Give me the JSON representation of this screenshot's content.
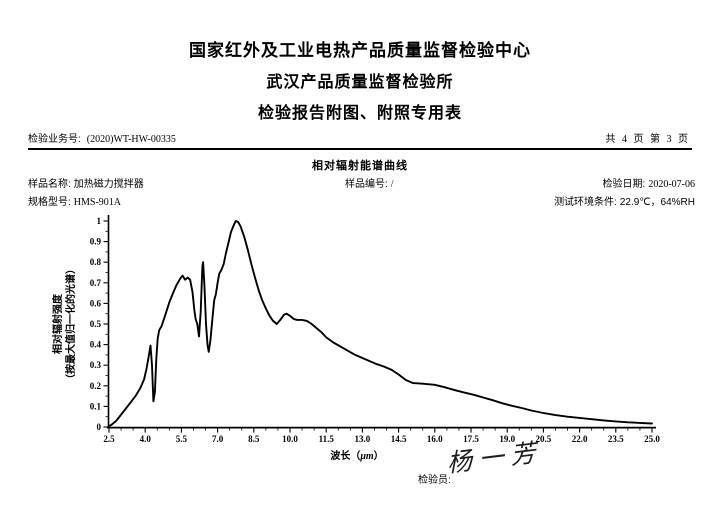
{
  "header": {
    "line1": "国家红外及工业电热产品质量监督检验中心",
    "line2": "武汉产品质量监督检验所",
    "line3": "检验报告附图、附照专用表"
  },
  "meta": {
    "business_label": "检验业务号:",
    "business_no": "(2020)WT-HW-00335",
    "pagination": "共 4 页 第 3 页"
  },
  "section": {
    "title": "相对辐射能谱曲线"
  },
  "info": {
    "sample_name_label": "样品名称:",
    "sample_name": "加热磁力搅拌器",
    "sample_no_label": "样品编号:",
    "sample_no": "/",
    "date_label": "检验日期:",
    "date": "2020-07-06",
    "model_label": "规格型号:",
    "model": "HMS-901A",
    "env_label": "测试环境条件:",
    "env": "22.9℃，64%RH"
  },
  "footer": {
    "inspector_label": "检验员:",
    "signature": "杨一芳"
  },
  "chart_data": {
    "type": "line",
    "title": "相对辐射能谱曲线",
    "xlabel_prefix": "波长（",
    "xlabel_unit": "μm",
    "xlabel_suffix": "）",
    "ylabel_lines": [
      "相对辐射强度",
      "（按最大值归一化的光谱）"
    ],
    "xlim": [
      2.5,
      25.0
    ],
    "ylim": [
      0,
      1
    ],
    "grid": false,
    "legend": null,
    "line_color": "#000000",
    "x_tick_values": [
      2.5,
      4.0,
      5.5,
      7.0,
      8.5,
      10.0,
      11.5,
      13.0,
      14.5,
      16.0,
      17.5,
      19.0,
      20.5,
      22.0,
      23.5,
      25.0
    ],
    "x_tick_labels": [
      "2.5",
      "4.0",
      "5.5",
      "7.0",
      "8.5",
      "10.0",
      "11.5",
      "13.0",
      "14.5",
      "16.0",
      "17.5",
      "19.0",
      "20.5",
      "22.0",
      "23.5",
      "25.0"
    ],
    "x_minor_step": 0.5,
    "y_tick_values": [
      0,
      0.1,
      0.2,
      0.3,
      0.4,
      0.5,
      0.6,
      0.7,
      0.8,
      0.9,
      1
    ],
    "y_tick_labels": [
      "0",
      "0.1",
      "0.2",
      "0.3",
      "0.4",
      "0.5",
      "0.6",
      "0.7",
      "0.8",
      "0.9",
      "1"
    ],
    "y_minor_step": 0.05,
    "series": [
      {
        "name": "相对辐射强度",
        "points": [
          [
            2.5,
            0.005
          ],
          [
            2.6,
            0.01
          ],
          [
            2.8,
            0.03
          ],
          [
            3.0,
            0.06
          ],
          [
            3.2,
            0.09
          ],
          [
            3.4,
            0.12
          ],
          [
            3.6,
            0.15
          ],
          [
            3.8,
            0.19
          ],
          [
            3.95,
            0.23
          ],
          [
            4.05,
            0.28
          ],
          [
            4.15,
            0.345
          ],
          [
            4.22,
            0.395
          ],
          [
            4.28,
            0.3
          ],
          [
            4.34,
            0.125
          ],
          [
            4.4,
            0.17
          ],
          [
            4.46,
            0.33
          ],
          [
            4.52,
            0.43
          ],
          [
            4.58,
            0.47
          ],
          [
            4.68,
            0.49
          ],
          [
            4.85,
            0.55
          ],
          [
            5.0,
            0.605
          ],
          [
            5.15,
            0.65
          ],
          [
            5.3,
            0.69
          ],
          [
            5.45,
            0.72
          ],
          [
            5.55,
            0.735
          ],
          [
            5.65,
            0.715
          ],
          [
            5.76,
            0.725
          ],
          [
            5.86,
            0.715
          ],
          [
            5.96,
            0.655
          ],
          [
            6.04,
            0.565
          ],
          [
            6.09,
            0.525
          ],
          [
            6.16,
            0.5
          ],
          [
            6.23,
            0.44
          ],
          [
            6.3,
            0.56
          ],
          [
            6.37,
            0.78
          ],
          [
            6.4,
            0.8
          ],
          [
            6.45,
            0.7
          ],
          [
            6.52,
            0.5
          ],
          [
            6.58,
            0.4
          ],
          [
            6.63,
            0.365
          ],
          [
            6.7,
            0.42
          ],
          [
            6.78,
            0.52
          ],
          [
            6.86,
            0.615
          ],
          [
            6.93,
            0.645
          ],
          [
            7.0,
            0.7
          ],
          [
            7.07,
            0.745
          ],
          [
            7.15,
            0.76
          ],
          [
            7.25,
            0.79
          ],
          [
            7.35,
            0.845
          ],
          [
            7.45,
            0.895
          ],
          [
            7.55,
            0.945
          ],
          [
            7.65,
            0.975
          ],
          [
            7.75,
            1.0
          ],
          [
            7.85,
            0.995
          ],
          [
            7.95,
            0.975
          ],
          [
            8.1,
            0.925
          ],
          [
            8.25,
            0.86
          ],
          [
            8.4,
            0.79
          ],
          [
            8.55,
            0.725
          ],
          [
            8.7,
            0.665
          ],
          [
            8.85,
            0.615
          ],
          [
            9.0,
            0.575
          ],
          [
            9.15,
            0.54
          ],
          [
            9.3,
            0.515
          ],
          [
            9.45,
            0.5
          ],
          [
            9.6,
            0.52
          ],
          [
            9.75,
            0.545
          ],
          [
            9.85,
            0.55
          ],
          [
            10.0,
            0.54
          ],
          [
            10.15,
            0.525
          ],
          [
            10.3,
            0.52
          ],
          [
            10.5,
            0.52
          ],
          [
            10.7,
            0.515
          ],
          [
            10.9,
            0.5
          ],
          [
            11.1,
            0.48
          ],
          [
            11.3,
            0.46
          ],
          [
            11.5,
            0.435
          ],
          [
            11.8,
            0.41
          ],
          [
            12.1,
            0.39
          ],
          [
            12.4,
            0.37
          ],
          [
            12.7,
            0.35
          ],
          [
            13.0,
            0.335
          ],
          [
            13.3,
            0.32
          ],
          [
            13.6,
            0.305
          ],
          [
            13.9,
            0.293
          ],
          [
            14.2,
            0.278
          ],
          [
            14.5,
            0.255
          ],
          [
            14.8,
            0.228
          ],
          [
            15.1,
            0.213
          ],
          [
            15.5,
            0.21
          ],
          [
            16.0,
            0.205
          ],
          [
            16.4,
            0.193
          ],
          [
            16.8,
            0.18
          ],
          [
            17.2,
            0.168
          ],
          [
            17.6,
            0.157
          ],
          [
            18.0,
            0.143
          ],
          [
            18.4,
            0.13
          ],
          [
            18.8,
            0.115
          ],
          [
            19.2,
            0.103
          ],
          [
            19.6,
            0.092
          ],
          [
            20.0,
            0.08
          ],
          [
            20.5,
            0.068
          ],
          [
            21.0,
            0.058
          ],
          [
            21.5,
            0.05
          ],
          [
            22.0,
            0.044
          ],
          [
            22.5,
            0.038
          ],
          [
            23.0,
            0.032
          ],
          [
            23.5,
            0.027
          ],
          [
            24.0,
            0.023
          ],
          [
            24.5,
            0.02
          ],
          [
            25.0,
            0.017
          ]
        ]
      }
    ]
  }
}
